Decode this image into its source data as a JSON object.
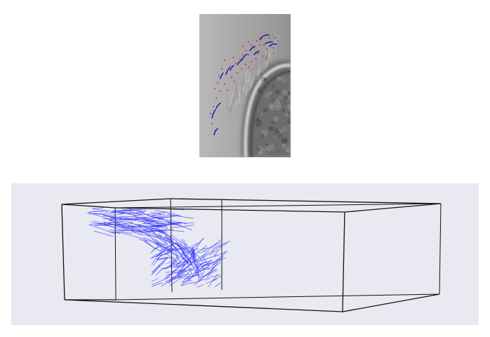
{
  "colors": {
    "page_background": "#ffffff",
    "panel_background": "#e9eaf1",
    "box_edges": "#111111",
    "fiber_traces": "#3232ff",
    "detected_points": "#e0306b",
    "tracked_segments": "#1a1aa8"
  },
  "micrograph": {
    "kind": "grayscale microscopy image of a curved bundle with overlaid detections",
    "detected_point_count": 46,
    "tracked_segment_count": 13
  },
  "reconstruction": {
    "kind": "3D bounding box with reconstructed fiber traces",
    "trace_count": 320
  }
}
